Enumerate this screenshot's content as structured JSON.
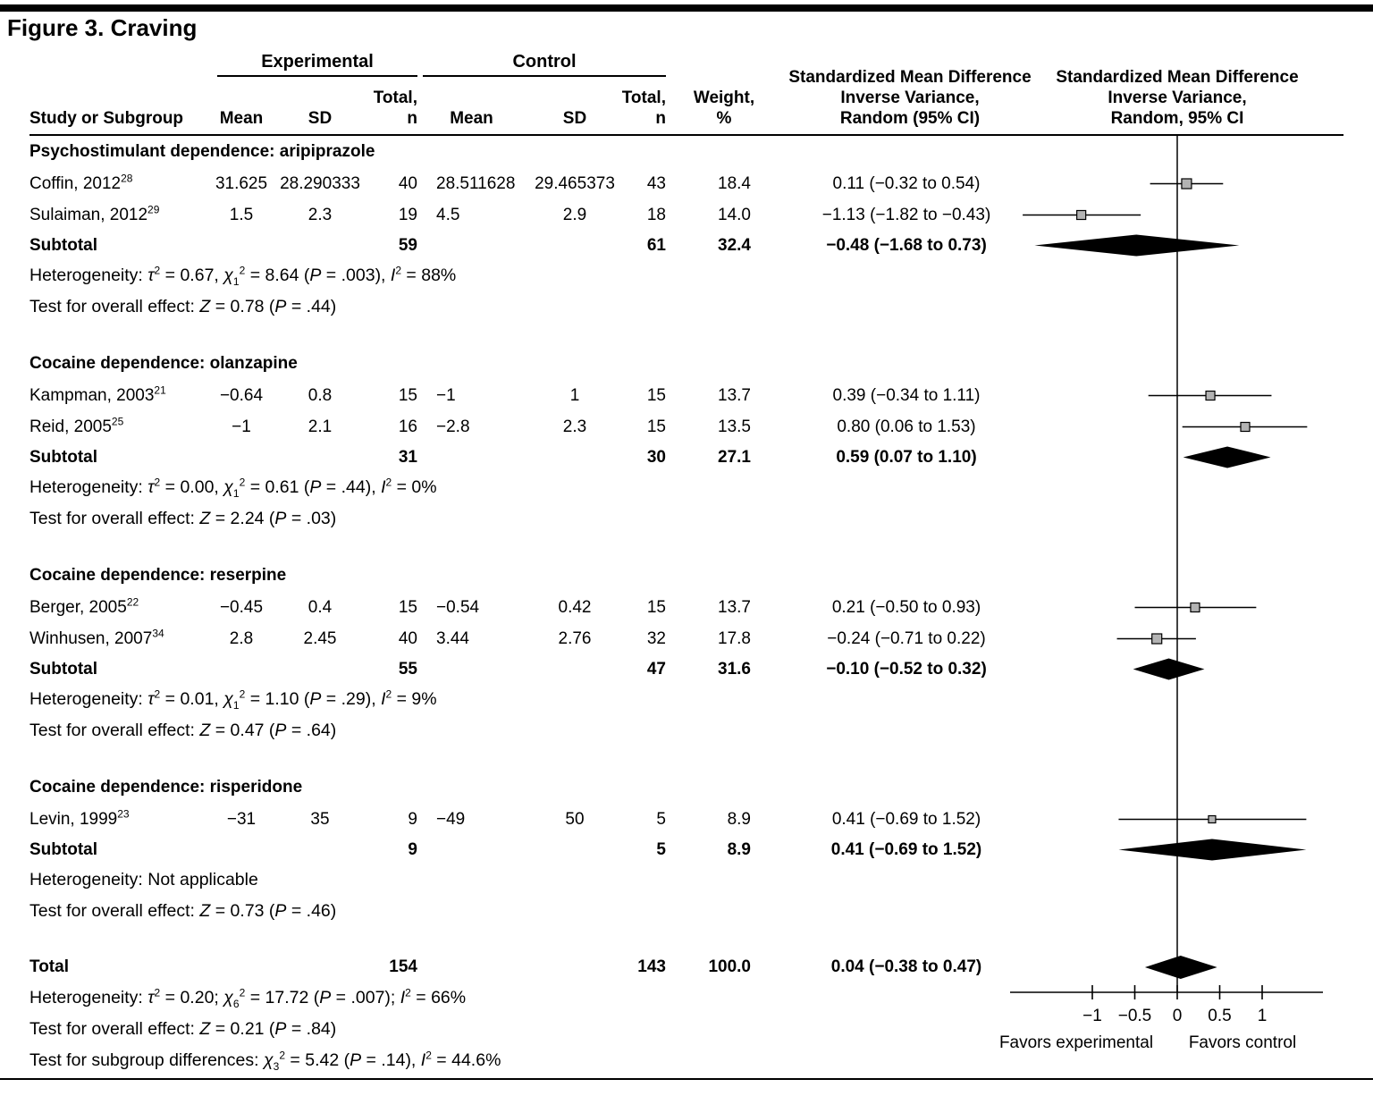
{
  "figure": {
    "title": "Figure 3. Craving"
  },
  "header": {
    "group1": "Experimental",
    "group2": "Control",
    "col_study": "Study or Subgroup",
    "col_mean": "Mean",
    "col_sd": "SD",
    "col_total_1": "Total,",
    "col_total_2": "n",
    "col_weight_1": "Weight,",
    "col_weight_2": "%",
    "smd_text_1": "Standardized Mean Difference",
    "smd_text_2": "Inverse Variance,",
    "smd_text_3": "Random (95% CI)",
    "smd_plot_1": "Standardized Mean Difference",
    "smd_plot_2": "Inverse Variance,",
    "smd_plot_3": "Random, 95% CI"
  },
  "chart_data": {
    "type": "forest",
    "xlabel_ticks": [
      "−1",
      "−0.5",
      "0",
      "0.5",
      "1"
    ],
    "xticks": [
      -1,
      -0.5,
      0,
      0.5,
      1
    ],
    "xlim": [
      -1.95,
      1.7
    ],
    "favors_left": "Favors experimental",
    "favors_right": "Favors control",
    "rows": [
      {
        "type": "section",
        "label": "Psychostimulant dependence: aripiprazole"
      },
      {
        "type": "study",
        "label": "Coffin, 2012",
        "sup": "28",
        "mean1": "31.625",
        "sd1": "28.290333",
        "n1": "40",
        "mean2": "28.511628",
        "sd2": "29.465373",
        "n2": "43",
        "weight": "18.4",
        "smd": "0.11 (−0.32 to 0.54)",
        "est": 0.11,
        "lo": -0.32,
        "hi": 0.54
      },
      {
        "type": "study",
        "label": "Sulaiman, 2012",
        "sup": "29",
        "mean1": "1.5",
        "sd1": "2.3",
        "n1": "19",
        "mean2": "4.5",
        "sd2": "2.9",
        "n2": "18",
        "weight": "14.0",
        "smd": "−1.13 (−1.82 to −0.43)",
        "est": -1.13,
        "lo": -1.82,
        "hi": -0.43
      },
      {
        "type": "subtotal",
        "label": "Subtotal",
        "n1": "59",
        "n2": "61",
        "weight": "32.4",
        "smd": "−0.48 (−1.68 to 0.73)",
        "est": -0.48,
        "lo": -1.68,
        "hi": 0.73
      },
      {
        "type": "note",
        "text": "Heterogeneity: τ² = 0.67, χ₁² = 8.64 (P = .003), I² = 88%"
      },
      {
        "type": "note",
        "text": "Test for overall effect: Z = 0.78 (P = .44)"
      },
      {
        "type": "spacer"
      },
      {
        "type": "section",
        "label": "Cocaine dependence: olanzapine"
      },
      {
        "type": "study",
        "label": "Kampman, 2003",
        "sup": "21",
        "mean1": "−0.64",
        "sd1": "0.8",
        "n1": "15",
        "mean2": "−1",
        "sd2": "1",
        "n2": "15",
        "weight": "13.7",
        "smd": "0.39 (−0.34 to 1.11)",
        "est": 0.39,
        "lo": -0.34,
        "hi": 1.11
      },
      {
        "type": "study",
        "label": "Reid, 2005",
        "sup": "25",
        "mean1": "−1",
        "sd1": "2.1",
        "n1": "16",
        "mean2": "−2.8",
        "sd2": "2.3",
        "n2": "15",
        "weight": "13.5",
        "smd": "0.80 (0.06 to 1.53)",
        "est": 0.8,
        "lo": 0.06,
        "hi": 1.53
      },
      {
        "type": "subtotal",
        "label": "Subtotal",
        "n1": "31",
        "n2": "30",
        "weight": "27.1",
        "smd": "0.59 (0.07 to 1.10)",
        "est": 0.59,
        "lo": 0.07,
        "hi": 1.1
      },
      {
        "type": "note",
        "text": "Heterogeneity: τ² = 0.00, χ₁² = 0.61 (P = .44), I² = 0%"
      },
      {
        "type": "note",
        "text": "Test for overall effect: Z = 2.24 (P = .03)"
      },
      {
        "type": "spacer"
      },
      {
        "type": "section",
        "label": "Cocaine dependence: reserpine"
      },
      {
        "type": "study",
        "label": "Berger, 2005",
        "sup": "22",
        "mean1": "−0.45",
        "sd1": "0.4",
        "n1": "15",
        "mean2": "−0.54",
        "sd2": "0.42",
        "n2": "15",
        "weight": "13.7",
        "smd": "0.21 (−0.50 to 0.93)",
        "est": 0.21,
        "lo": -0.5,
        "hi": 0.93
      },
      {
        "type": "study",
        "label": "Winhusen, 2007",
        "sup": "34",
        "mean1": "2.8",
        "sd1": "2.45",
        "n1": "40",
        "mean2": "3.44",
        "sd2": "2.76",
        "n2": "32",
        "weight": "17.8",
        "smd": "−0.24 (−0.71 to 0.22)",
        "est": -0.24,
        "lo": -0.71,
        "hi": 0.22
      },
      {
        "type": "subtotal",
        "label": "Subtotal",
        "n1": "55",
        "n2": "47",
        "weight": "31.6",
        "smd": "−0.10 (−0.52 to 0.32)",
        "est": -0.1,
        "lo": -0.52,
        "hi": 0.32
      },
      {
        "type": "note",
        "text": "Heterogeneity: τ² = 0.01, χ₁² = 1.10 (P = .29), I² = 9%"
      },
      {
        "type": "note",
        "text": "Test for overall effect: Z = 0.47 (P = .64)"
      },
      {
        "type": "spacer"
      },
      {
        "type": "section",
        "label": "Cocaine dependence: risperidone"
      },
      {
        "type": "study",
        "label": "Levin, 1999",
        "sup": "23",
        "mean1": "−31",
        "sd1": "35",
        "n1": "9",
        "mean2": "−49",
        "sd2": "50",
        "n2": "5",
        "weight": "8.9",
        "smd": "0.41 (−0.69 to 1.52)",
        "est": 0.41,
        "lo": -0.69,
        "hi": 1.52
      },
      {
        "type": "subtotal",
        "label": "Subtotal",
        "n1": "9",
        "n2": "5",
        "weight": "8.9",
        "smd": "0.41 (−0.69 to 1.52)",
        "est": 0.41,
        "lo": -0.69,
        "hi": 1.52
      },
      {
        "type": "note",
        "text": "Heterogeneity: Not applicable"
      },
      {
        "type": "note",
        "text": "Test for overall effect: Z = 0.73 (P = .46)"
      },
      {
        "type": "spacer"
      },
      {
        "type": "total",
        "label": "Total",
        "n1": "154",
        "n2": "143",
        "weight": "100.0",
        "smd": "0.04 (−0.38 to 0.47)",
        "est": 0.04,
        "lo": -0.38,
        "hi": 0.47
      },
      {
        "type": "note",
        "text": "Heterogeneity: τ² = 0.20; χ₆² = 17.72 (P = .007); I² = 66%"
      },
      {
        "type": "note",
        "text": "Test for overall effect: Z = 0.21 (P = .84)"
      },
      {
        "type": "note",
        "text": "Test for subgroup differences: χ₃² = 5.42 (P = .14), I² = 44.6%"
      }
    ]
  }
}
